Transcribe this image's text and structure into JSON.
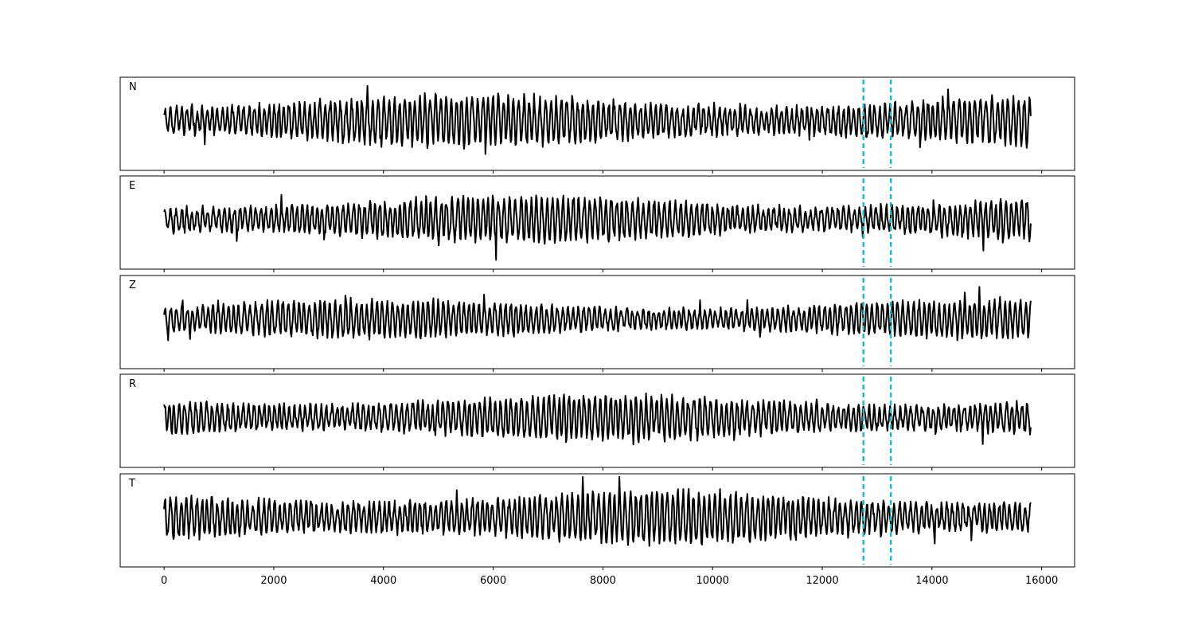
{
  "chart_data": {
    "type": "line",
    "xlim": [
      -800,
      16600
    ],
    "x_ticks": [
      0,
      2000,
      4000,
      6000,
      8000,
      10000,
      12000,
      14000,
      16000
    ],
    "x_tick_labels": [
      "0",
      "2000",
      "4000",
      "6000",
      "8000",
      "10000",
      "12000",
      "14000",
      "16000"
    ],
    "sample_count": 15800,
    "markers": [
      12750,
      13250
    ],
    "marker_color": "#17becf",
    "trace_color": "#000000",
    "panels": [
      {
        "label": "N",
        "amp": 0.55,
        "seed": 11
      },
      {
        "label": "E",
        "amp": 0.5,
        "seed": 23
      },
      {
        "label": "Z",
        "amp": 0.42,
        "seed": 37
      },
      {
        "label": "R",
        "amp": 0.5,
        "seed": 41
      },
      {
        "label": "T",
        "amp": 0.58,
        "seed": 53
      }
    ]
  }
}
